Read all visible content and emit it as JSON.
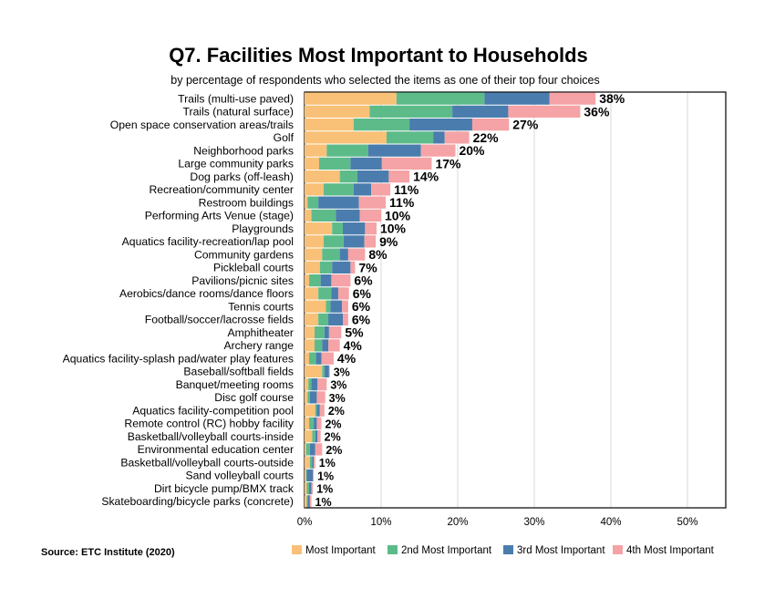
{
  "chart_data": {
    "type": "bar",
    "orientation": "horizontal",
    "stacked": true,
    "title": "Q7. Facilities Most Important to Households",
    "subtitle": "by percentage of respondents who selected the items as one of their top four choices",
    "source": "Source:  ETC Institute (2020)",
    "xlim": [
      0,
      55
    ],
    "xticks": [
      "0%",
      "10%",
      "20%",
      "30%",
      "40%",
      "50%"
    ],
    "xtick_values": [
      0,
      10,
      20,
      30,
      40,
      50
    ],
    "grid": true,
    "legend_position": "bottom",
    "colors": [
      "#F9C178",
      "#5DBB8A",
      "#4A7DAE",
      "#F5A3A6"
    ],
    "categories": [
      "Trails (multi-use paved)",
      "Trails (natural surface)",
      "Open space conservation areas/trails",
      "Golf",
      "Neighborhood parks",
      "Large community parks",
      "Dog parks (off-leash)",
      "Recreation/community center",
      "Restroom buildings",
      "Performing Arts Venue (stage)",
      "Playgrounds",
      "Aquatics facility-recreation/lap pool",
      "Community gardens",
      "Pickleball courts",
      "Pavilions/picnic sites",
      "Aerobics/dance rooms/dance floors",
      "Tennis courts",
      "Football/soccer/lacrosse fields",
      "Amphitheater",
      "Archery range",
      "Aquatics facility-splash pad/water play features",
      "Baseball/softball fields",
      "Banquet/meeting rooms",
      "Disc golf course",
      "Aquatics facility-competition pool",
      "Remote control (RC) hobby facility",
      "Basketball/volleyball courts-inside",
      "Environmental education center",
      "Basketball/volleyball courts-outside",
      "Sand volleyball courts",
      "Dirt bicycle pump/BMX track",
      "Skateboarding/bicycle parks (concrete)"
    ],
    "totals": [
      "38%",
      "36%",
      "27%",
      "22%",
      "20%",
      "17%",
      "14%",
      "11%",
      "11%",
      "10%",
      "10%",
      "9%",
      "8%",
      "7%",
      "6%",
      "6%",
      "6%",
      "6%",
      "5%",
      "4%",
      "4%",
      "3%",
      "3%",
      "3%",
      "2%",
      "2%",
      "2%",
      "2%",
      "1%",
      "1%",
      "1%",
      "1%"
    ],
    "series": [
      {
        "name": "Most Important",
        "values": [
          12,
          8.5,
          6.4,
          10.7,
          2.9,
          1.9,
          4.6,
          2.5,
          0.4,
          0.9,
          3.6,
          2.5,
          2.3,
          2.0,
          0.6,
          1.8,
          2.8,
          1.8,
          1.3,
          1.3,
          0.6,
          2.3,
          0.5,
          0.4,
          1.4,
          0.6,
          1.0,
          0.2,
          0.7,
          0.2,
          0.3,
          0.3
        ]
      },
      {
        "name": "2nd Most Important",
        "values": [
          11.5,
          10.8,
          7.3,
          6.1,
          5.4,
          4.1,
          2.3,
          3.9,
          1.4,
          3.2,
          1.4,
          2.6,
          2.3,
          1.6,
          1.5,
          1.7,
          0.6,
          1.3,
          1.3,
          1.0,
          0.9,
          0.3,
          0.4,
          0.3,
          0.2,
          0.6,
          0.4,
          0.5,
          0.3,
          0.1,
          0.3,
          0.1
        ]
      },
      {
        "name": "3rd Most Important",
        "values": [
          8.5,
          7.3,
          8.2,
          1.5,
          6.9,
          4.1,
          4.1,
          2.3,
          5.3,
          3.1,
          2.9,
          2.7,
          1.1,
          2.4,
          1.4,
          0.9,
          1.5,
          1.9,
          0.6,
          0.8,
          0.7,
          0.6,
          0.8,
          0.9,
          0.4,
          0.4,
          0.3,
          0.7,
          0.2,
          0.8,
          0.3,
          0.3
        ]
      },
      {
        "name": "4th Most Important",
        "values": [
          6.0,
          9.4,
          4.8,
          3.2,
          4.5,
          6.5,
          2.7,
          2.5,
          3.5,
          2.8,
          1.5,
          1.5,
          2.2,
          0.6,
          2.5,
          1.4,
          0.8,
          0.7,
          1.6,
          1.5,
          1.6,
          0.1,
          1.2,
          1.1,
          0.6,
          0.6,
          0.4,
          0.9,
          0.2,
          0.1,
          0.2,
          0.2
        ]
      }
    ]
  }
}
